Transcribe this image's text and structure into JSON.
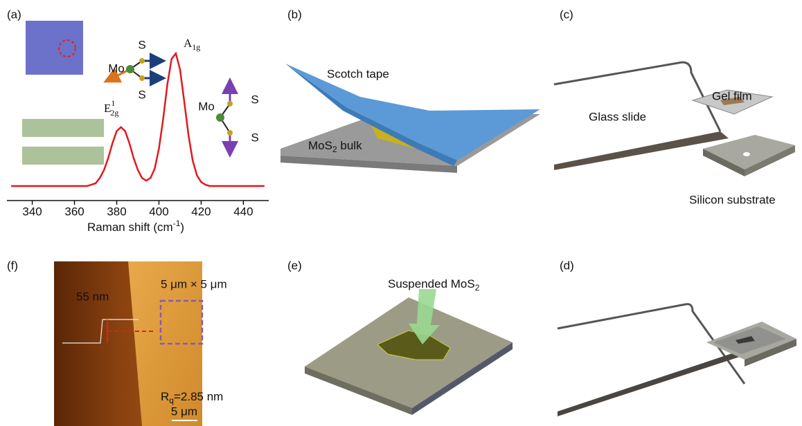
{
  "panel_labels": [
    "(a)",
    "(b)",
    "(c)",
    "(f)",
    "(e)",
    "(d)"
  ],
  "chart_data": {
    "type": "line",
    "xlabel": {
      "text": "Raman shift (cm",
      "sup": "-1",
      "tail": ")"
    },
    "x": [
      330,
      332,
      334,
      336,
      338,
      340,
      342,
      344,
      346,
      348,
      350,
      352,
      354,
      356,
      358,
      360,
      362,
      364,
      366,
      368,
      370,
      372,
      374,
      376,
      378,
      380,
      382,
      384,
      386,
      388,
      390,
      392,
      394,
      396,
      398,
      400,
      402,
      404,
      406,
      408,
      410,
      412,
      414,
      416,
      418,
      420,
      422,
      424,
      426,
      428,
      430,
      432,
      434,
      436,
      438,
      440,
      442,
      444,
      446,
      448,
      450
    ],
    "series": [
      {
        "color": "#e0191e",
        "values": [
          0,
          0,
          0,
          0,
          0,
          0,
          0,
          0,
          0,
          0,
          0,
          0,
          0,
          0,
          0,
          0,
          0,
          0,
          0,
          0.01,
          0.02,
          0.06,
          0.12,
          0.21,
          0.32,
          0.41,
          0.44,
          0.41,
          0.32,
          0.21,
          0.12,
          0.06,
          0.04,
          0.06,
          0.13,
          0.28,
          0.5,
          0.76,
          0.95,
          0.99,
          0.87,
          0.63,
          0.38,
          0.19,
          0.08,
          0.03,
          0.01,
          0,
          0,
          0,
          0,
          0,
          0,
          0,
          0,
          0,
          0,
          0,
          0,
          0,
          0
        ]
      }
    ],
    "xlim": [
      328,
      452
    ],
    "xticks": [
      340,
      360,
      380,
      400,
      420,
      440
    ],
    "ylim": [
      0,
      1.1
    ],
    "peaks": [
      {
        "text": "A",
        "sub": "1g"
      },
      {
        "text": "E",
        "sup": "1",
        "sub": "2g"
      }
    ],
    "annotations": [
      "Mo",
      "S",
      "S",
      "Mo",
      "S",
      "S"
    ]
  },
  "panel_b": {
    "tape": "Scotch tape",
    "bulk": {
      "text": "MoS",
      "sub": "2",
      "tail": " bulk"
    }
  },
  "panel_c": {
    "gel": "Gel film",
    "glass": "Glass slide",
    "substrate": "Silicon substrate"
  },
  "panel_f": {
    "height": "55 nm",
    "area": "5 μm × 5 μm",
    "roughness": {
      "text": "R",
      "sub": "q",
      "tail": "=2.85 nm"
    },
    "scale": "5 μm"
  },
  "panel_e": {
    "label": {
      "text": "Suspended MoS",
      "sub": "2"
    }
  }
}
